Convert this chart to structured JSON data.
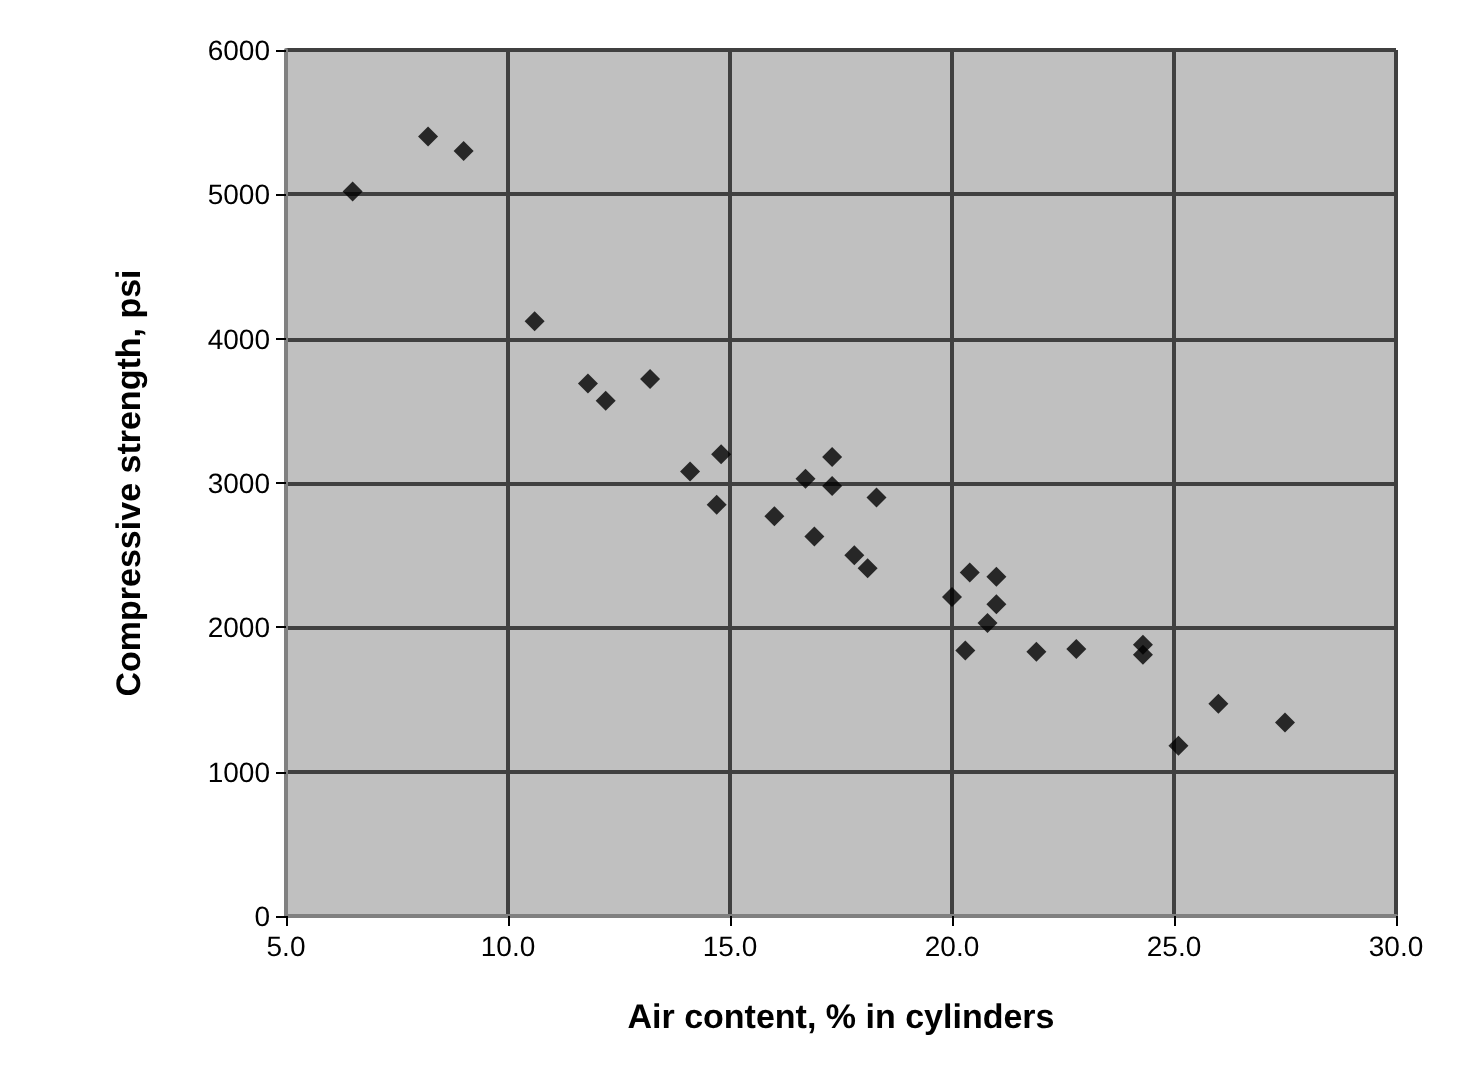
{
  "chart_data": {
    "type": "scatter",
    "xlabel": "Air content, % in cylinders",
    "ylabel": "Compressive strength, psi",
    "x": [
      6.5,
      8.2,
      9.0,
      10.6,
      11.8,
      12.2,
      13.2,
      14.1,
      14.8,
      14.7,
      16.0,
      16.7,
      17.3,
      17.3,
      16.9,
      18.3,
      17.8,
      18.1,
      20.0,
      20.4,
      21.0,
      21.0,
      20.8,
      20.3,
      21.9,
      22.8,
      24.3,
      24.3,
      25.1,
      26.0,
      27.5
    ],
    "values": [
      5020,
      5400,
      5300,
      4120,
      3690,
      3570,
      3720,
      3080,
      3200,
      2850,
      2770,
      3030,
      3180,
      2980,
      2630,
      2900,
      2500,
      2410,
      2210,
      2380,
      2350,
      2160,
      2030,
      1840,
      1830,
      1850,
      1880,
      1810,
      1180,
      1470,
      1340
    ],
    "color": "#000000",
    "marker": "diamond",
    "grid": true,
    "xlim": [
      5,
      30
    ],
    "xticks": [
      {
        "value": 5,
        "label": "5.0"
      },
      {
        "value": 10,
        "label": "10.0"
      },
      {
        "value": 15,
        "label": "15.0"
      },
      {
        "value": 20,
        "label": "20.0"
      },
      {
        "value": 25,
        "label": "25.0"
      },
      {
        "value": 30,
        "label": "30.0"
      }
    ],
    "ylim": [
      0,
      6000
    ],
    "yticks": [
      0,
      1000,
      2000,
      3000,
      4000,
      5000,
      6000
    ]
  }
}
